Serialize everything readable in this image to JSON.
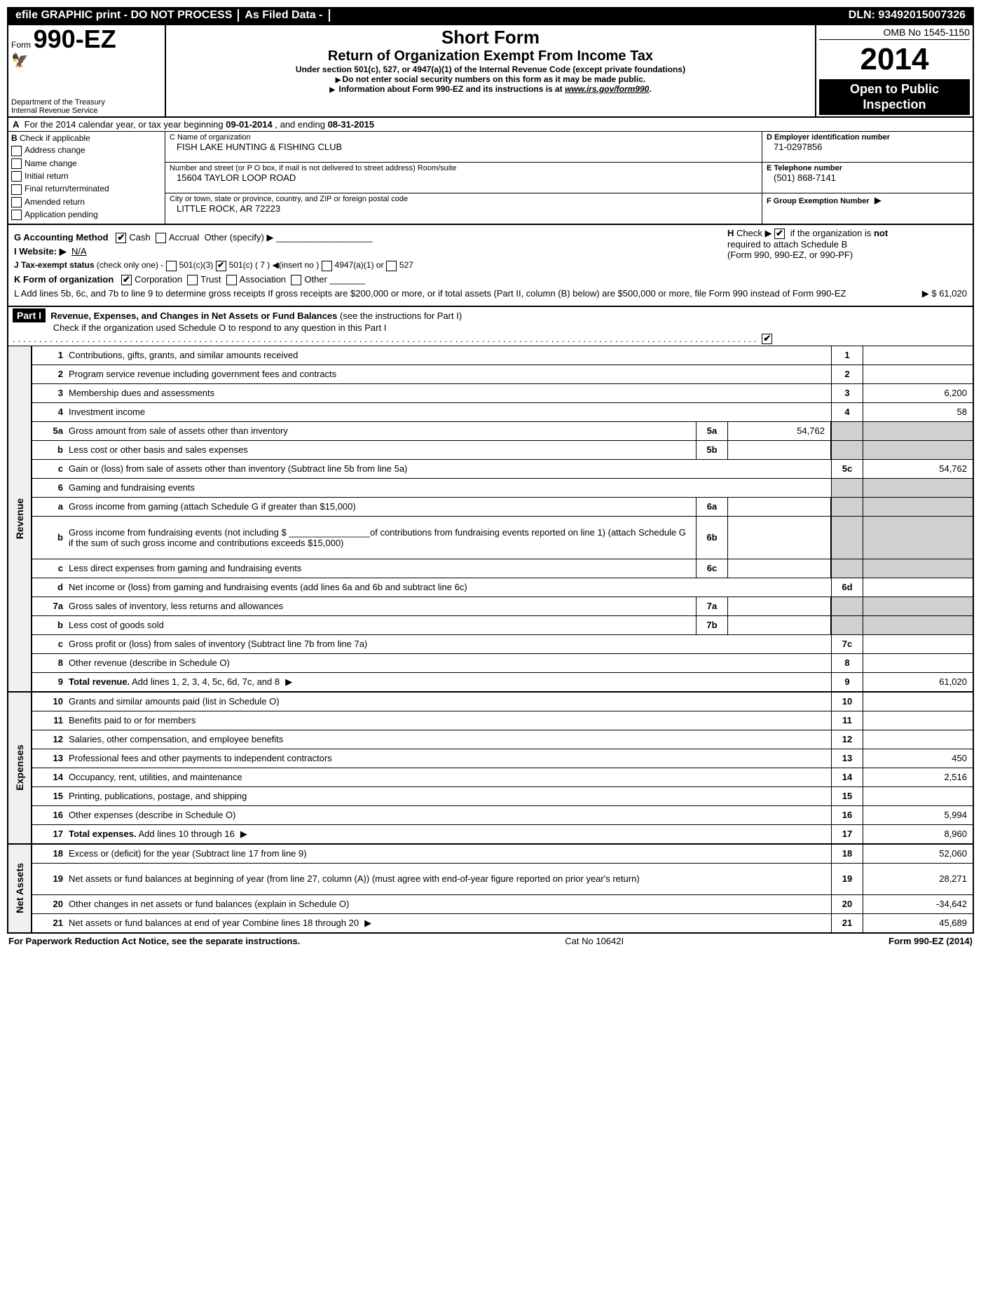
{
  "topbar": {
    "efile": "efile GRAPHIC print - DO NOT PROCESS",
    "asfiled": "As Filed Data -",
    "dln": "DLN: 93492015007326"
  },
  "header": {
    "form_prefix": "Form",
    "form_num": "990-EZ",
    "dept1": "Department of the Treasury",
    "dept2": "Internal Revenue Service",
    "title1": "Short Form",
    "title2": "Return of Organization Exempt From Income Tax",
    "subtitle": "Under section 501(c), 527, or 4947(a)(1) of the Internal Revenue Code (except private foundations)",
    "note1": "Do not enter social security numbers on this form as it may be made public.",
    "note2_pre": "Information about Form 990-EZ and its instructions is at ",
    "note2_link": "www.irs.gov/form990",
    "omb": "OMB No 1545-1150",
    "year": "2014",
    "open1": "Open to Public",
    "open2": "Inspection"
  },
  "A": {
    "text_pre": "For the 2014 calendar year, or tax year beginning ",
    "begin": "09-01-2014",
    "mid": " , and ending ",
    "end": "08-31-2015"
  },
  "B": {
    "hdr": "Check if applicable",
    "items": [
      "Address change",
      "Name change",
      "Initial return",
      "Final return/terminated",
      "Amended return",
      "Application pending"
    ]
  },
  "C": {
    "name_lbl": "C Name of organization",
    "name": "FISH LAKE HUNTING & FISHING CLUB",
    "street_lbl": "Number and street (or P O box, if mail is not delivered to street address) Room/suite",
    "street": "15604 TAYLOR LOOP ROAD",
    "city_lbl": "City or town, state or province, country, and ZIP or foreign postal code",
    "city": "LITTLE ROCK, AR  72223"
  },
  "D": {
    "ein_lbl": "D Employer identification number",
    "ein": "71-0297856",
    "tel_lbl": "E Telephone number",
    "tel": "(501) 868-7141",
    "grp_lbl": "F Group Exemption Number",
    "grp_arrow": "▶"
  },
  "G": {
    "label": "G Accounting Method",
    "cash": "Cash",
    "accrual": "Accrual",
    "other": "Other (specify) ▶"
  },
  "H": {
    "line1_pre": "Check ▶",
    "line1_post": " if the organization is ",
    "not": "not",
    "line2": "required to attach Schedule B",
    "line3": "(Form 990, 990-EZ, or 990-PF)"
  },
  "I": {
    "label": "I Website: ▶",
    "val": "N/A"
  },
  "J": {
    "label": "J Tax-exempt status",
    "note": "(check only one) -",
    "a": "501(c)(3)",
    "b": "501(c) ( 7 ) ◀(insert no )",
    "c": "4947(a)(1) or",
    "d": "527"
  },
  "K": {
    "label": "K Form of organization",
    "a": "Corporation",
    "b": "Trust",
    "c": "Association",
    "d": "Other"
  },
  "L": {
    "text": "L Add lines 5b, 6c, and 7b to line 9 to determine gross receipts  If gross receipts are $200,000 or more, or if total assets (Part II, column (B) below) are $500,000 or more, file Form 990 instead of Form 990-EZ",
    "amt_pre": "▶ $ ",
    "amt": "61,020"
  },
  "partI": {
    "label": "Part I",
    "title": "Revenue, Expenses, and Changes in Net Assets or Fund Balances",
    "note": " (see the instructions for Part I)",
    "check": "Check if the organization used Schedule O to respond to any question in this Part I"
  },
  "sections": {
    "revenue": "Revenue",
    "expenses": "Expenses",
    "netassets": "Net Assets"
  },
  "lines": {
    "l1": {
      "n": "1",
      "d": "Contributions, gifts, grants, and similar amounts received",
      "rn": "1",
      "rv": ""
    },
    "l2": {
      "n": "2",
      "d": "Program service revenue including government fees and contracts",
      "rn": "2",
      "rv": ""
    },
    "l3": {
      "n": "3",
      "d": "Membership dues and assessments",
      "rn": "3",
      "rv": "6,200"
    },
    "l4": {
      "n": "4",
      "d": "Investment income",
      "rn": "4",
      "rv": "58"
    },
    "l5a": {
      "n": "5a",
      "d": "Gross amount from sale of assets other than inventory",
      "sn": "5a",
      "sv": "54,762"
    },
    "l5b": {
      "n": "b",
      "d": "Less  cost or other basis and sales expenses",
      "sn": "5b",
      "sv": ""
    },
    "l5c": {
      "n": "c",
      "d": "Gain or (loss) from sale of assets other than inventory (Subtract line 5b from line 5a)",
      "rn": "5c",
      "rv": "54,762"
    },
    "l6": {
      "n": "6",
      "d": "Gaming and fundraising events"
    },
    "l6a": {
      "n": "a",
      "d": "Gross income from gaming (attach Schedule G if greater than $15,000)",
      "sn": "6a",
      "sv": ""
    },
    "l6b": {
      "n": "b",
      "d": "Gross income from fundraising events (not including $ ________________of contributions from fundraising events reported on line 1) (attach Schedule G if the sum of such gross income and contributions exceeds $15,000)",
      "sn": "6b",
      "sv": ""
    },
    "l6c": {
      "n": "c",
      "d": "Less  direct expenses from gaming and fundraising events",
      "sn": "6c",
      "sv": ""
    },
    "l6d": {
      "n": "d",
      "d": "Net income or (loss) from gaming and fundraising events (add lines 6a and 6b and subtract line 6c)",
      "rn": "6d",
      "rv": ""
    },
    "l7a": {
      "n": "7a",
      "d": "Gross sales of inventory, less returns and allowances",
      "sn": "7a",
      "sv": ""
    },
    "l7b": {
      "n": "b",
      "d": "Less  cost of goods sold",
      "sn": "7b",
      "sv": ""
    },
    "l7c": {
      "n": "c",
      "d": "Gross profit or (loss) from sales of inventory (Subtract line 7b from line 7a)",
      "rn": "7c",
      "rv": ""
    },
    "l8": {
      "n": "8",
      "d": "Other revenue (describe in Schedule O)",
      "rn": "8",
      "rv": ""
    },
    "l9": {
      "n": "9",
      "d": "Total revenue. Add lines 1, 2, 3, 4, 5c, 6d, 7c, and 8",
      "rn": "9",
      "rv": "61,020",
      "bold": true,
      "arrow": true
    },
    "l10": {
      "n": "10",
      "d": "Grants and similar amounts paid (list in Schedule O)",
      "rn": "10",
      "rv": ""
    },
    "l11": {
      "n": "11",
      "d": "Benefits paid to or for members",
      "rn": "11",
      "rv": ""
    },
    "l12": {
      "n": "12",
      "d": "Salaries, other compensation, and employee benefits",
      "rn": "12",
      "rv": ""
    },
    "l13": {
      "n": "13",
      "d": "Professional fees and other payments to independent contractors",
      "rn": "13",
      "rv": "450"
    },
    "l14": {
      "n": "14",
      "d": "Occupancy, rent, utilities, and maintenance",
      "rn": "14",
      "rv": "2,516"
    },
    "l15": {
      "n": "15",
      "d": "Printing, publications, postage, and shipping",
      "rn": "15",
      "rv": ""
    },
    "l16": {
      "n": "16",
      "d": "Other expenses (describe in Schedule O)",
      "rn": "16",
      "rv": "5,994"
    },
    "l17": {
      "n": "17",
      "d": "Total expenses. Add lines 10 through 16",
      "rn": "17",
      "rv": "8,960",
      "bold": true,
      "arrow": true
    },
    "l18": {
      "n": "18",
      "d": "Excess or (deficit) for the year (Subtract line 17 from line 9)",
      "rn": "18",
      "rv": "52,060"
    },
    "l19": {
      "n": "19",
      "d": "Net assets or fund balances at beginning of year (from line 27, column (A)) (must agree with end-of-year figure reported on prior year's return)",
      "rn": "19",
      "rv": "28,271"
    },
    "l20": {
      "n": "20",
      "d": "Other changes in net assets or fund balances (explain in Schedule O)",
      "rn": "20",
      "rv": "-34,642"
    },
    "l21": {
      "n": "21",
      "d": "Net assets or fund balances at end of year Combine lines 18 through 20",
      "rn": "21",
      "rv": "45,689",
      "arrow": true
    }
  },
  "footer": {
    "left": "For Paperwork Reduction Act Notice, see the separate instructions.",
    "mid": "Cat No 10642I",
    "right": "Form 990-EZ (2014)"
  }
}
